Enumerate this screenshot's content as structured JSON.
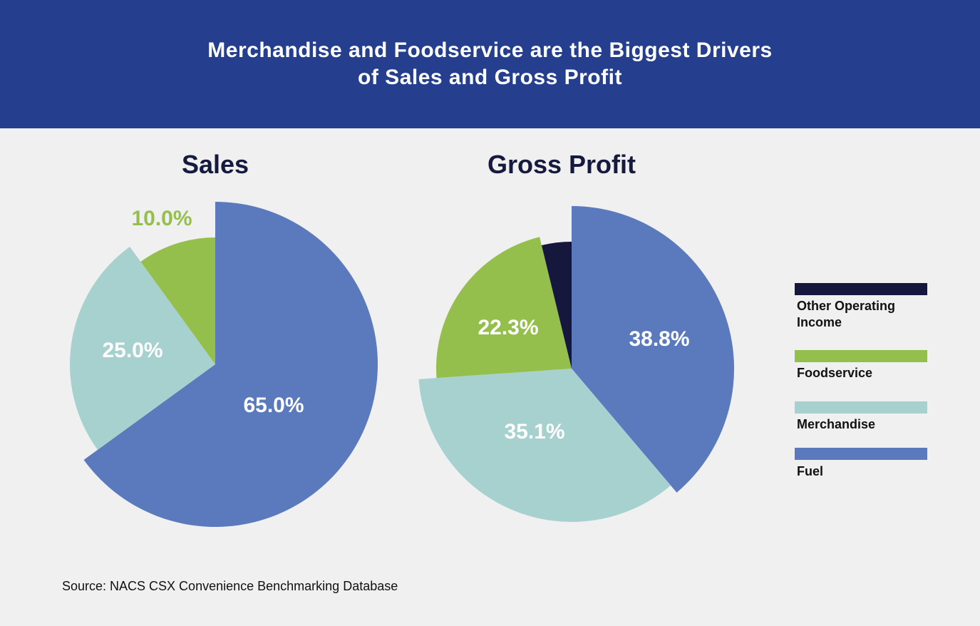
{
  "header": {
    "title_line1": "Merchandise and Foodservice are the Biggest Drivers",
    "title_line2": "of Sales and Gross Profit"
  },
  "source": "Source: NACS CSX Convenience Benchmarking Database",
  "colors": {
    "banner": "#253f8e",
    "background": "#f0f0f0",
    "other_operating_income": "#15173d",
    "foodservice": "#95bf4c",
    "merchandise": "#a7d1cf",
    "fuel": "#5b79bd"
  },
  "legend": [
    {
      "key": "other_operating_income",
      "label": "Other Operating Income"
    },
    {
      "key": "foodservice",
      "label": "Foodservice"
    },
    {
      "key": "merchandise",
      "label": "Merchandise"
    },
    {
      "key": "fuel",
      "label": "Fuel"
    }
  ],
  "chart_data": [
    {
      "type": "pie",
      "title": "Sales",
      "slices": [
        {
          "name": "Fuel",
          "value": 65.0,
          "label": "65.0%"
        },
        {
          "name": "Merchandise",
          "value": 25.0,
          "label": "25.0%"
        },
        {
          "name": "Foodservice",
          "value": 10.0,
          "label": "10.0%"
        }
      ]
    },
    {
      "type": "pie",
      "title": "Gross Profit",
      "slices": [
        {
          "name": "Fuel",
          "value": 38.8,
          "label": "38.8%"
        },
        {
          "name": "Merchandise",
          "value": 35.1,
          "label": "35.1%"
        },
        {
          "name": "Foodservice",
          "value": 22.3,
          "label": "22.3%"
        },
        {
          "name": "Other Operating Income",
          "value": 3.8,
          "label": ""
        }
      ]
    }
  ]
}
